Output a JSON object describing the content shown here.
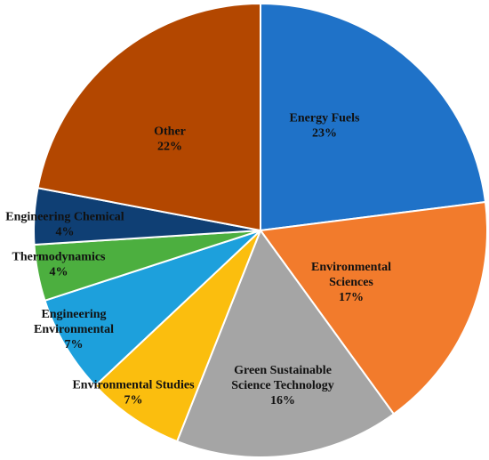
{
  "chart_data": {
    "type": "pie",
    "title": "",
    "start": "12 o'clock",
    "direction": "clockwise",
    "slices": [
      {
        "name": "Energy Fuels",
        "label_lines": [
          "Energy Fuels"
        ],
        "value": 23,
        "value_label": "23%",
        "color": "#1f72c8"
      },
      {
        "name": "Environmental Sciences",
        "label_lines": [
          "Environmental",
          "Sciences"
        ],
        "value": 17,
        "value_label": "17%",
        "color": "#f27b2c"
      },
      {
        "name": "Green Sustainable Science Technology",
        "label_lines": [
          "Green Sustainable",
          "Science Technology"
        ],
        "value": 16,
        "value_label": "16%",
        "color": "#a5a5a5"
      },
      {
        "name": "Environmental Studies",
        "label_lines": [
          "Environmental Studies"
        ],
        "value": 7,
        "value_label": "7%",
        "color": "#fbbe0e"
      },
      {
        "name": "Engineering Environmental",
        "label_lines": [
          "Engineering",
          "Environmental"
        ],
        "value": 7,
        "value_label": "7%",
        "color": "#1da0dc"
      },
      {
        "name": "Thermodynamics",
        "label_lines": [
          "Thermodynamics"
        ],
        "value": 4,
        "value_label": "4%",
        "color": "#4caf3f"
      },
      {
        "name": "Engineering Chemical",
        "label_lines": [
          "Engineering Chemical"
        ],
        "value": 4,
        "value_label": "4%",
        "color": "#0f3f74"
      },
      {
        "name": "Other",
        "label_lines": [
          "Other"
        ],
        "value": 22,
        "value_label": "22%",
        "color": "#b34700"
      }
    ]
  }
}
